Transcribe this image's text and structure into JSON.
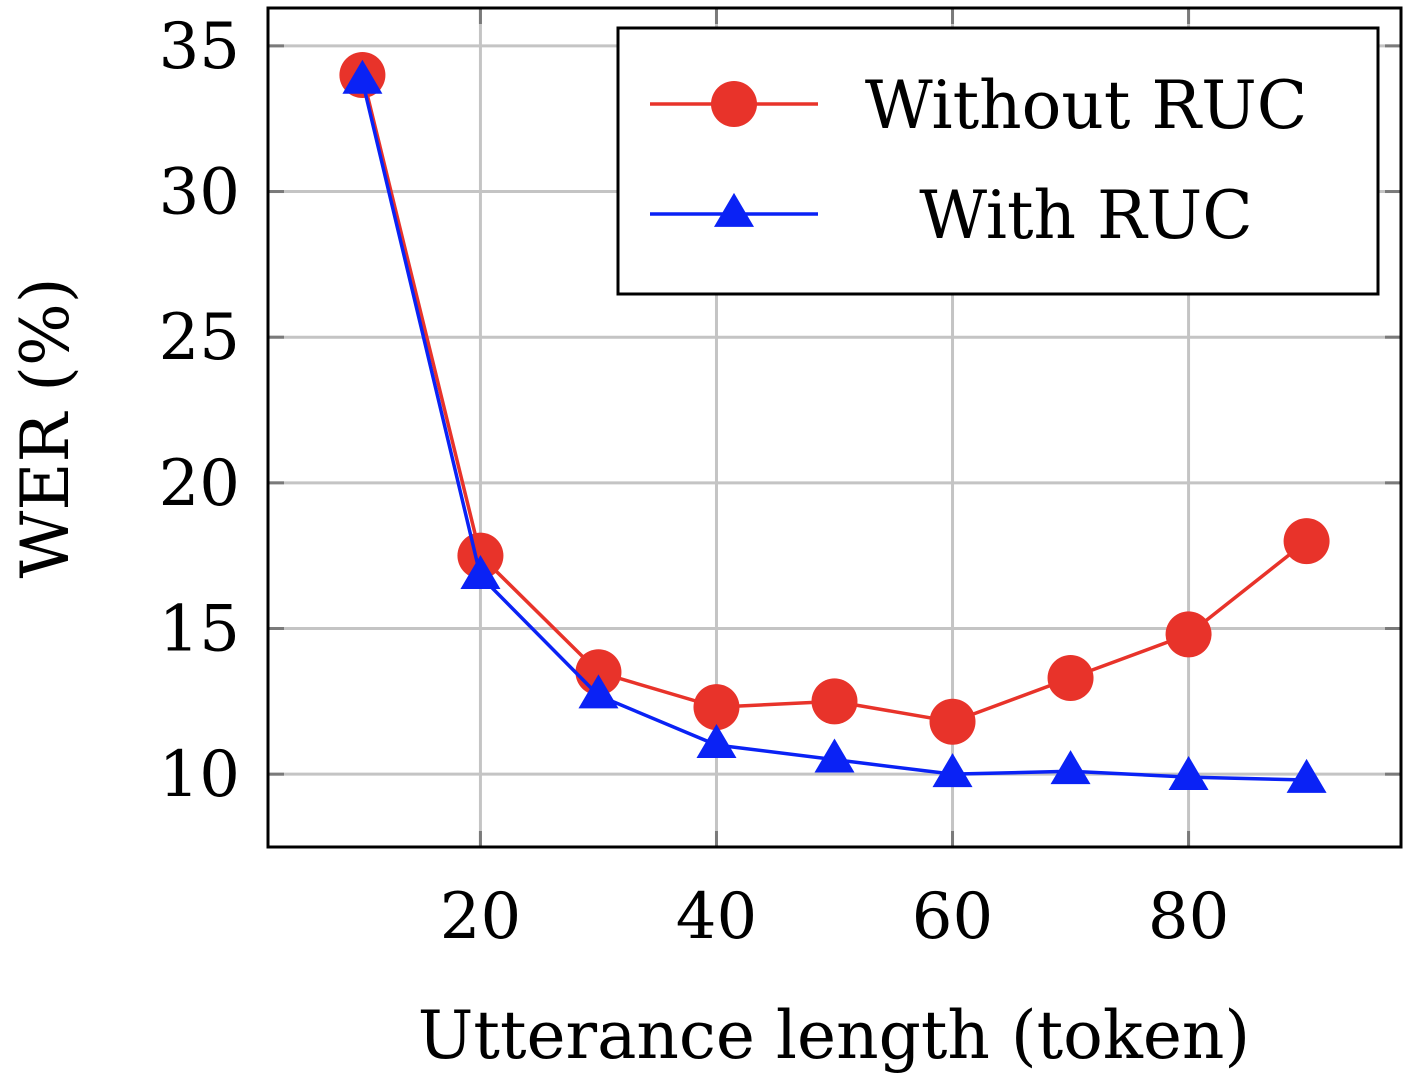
{
  "chart_data": {
    "type": "line",
    "xlabel": "Utterance length (token)",
    "ylabel": "WER (%)",
    "xlim": [
      2,
      98
    ],
    "ylim": [
      7.5,
      36.3
    ],
    "xticks": [
      20,
      40,
      60,
      80
    ],
    "yticks": [
      10,
      15,
      20,
      25,
      30,
      35
    ],
    "grid": true,
    "legend_position": "top-right",
    "x": [
      10,
      20,
      30,
      40,
      50,
      60,
      70,
      80,
      90
    ],
    "series": [
      {
        "name": "Without RUC",
        "color": "#e8332a",
        "marker": "circle",
        "values": [
          34.0,
          17.5,
          13.5,
          12.3,
          12.5,
          11.8,
          13.3,
          14.8,
          18.0
        ]
      },
      {
        "name": "With RUC",
        "color": "#0a22f5",
        "marker": "triangle",
        "values": [
          33.8,
          16.8,
          12.7,
          11.0,
          10.5,
          10.0,
          10.1,
          9.9,
          9.8
        ]
      }
    ]
  }
}
